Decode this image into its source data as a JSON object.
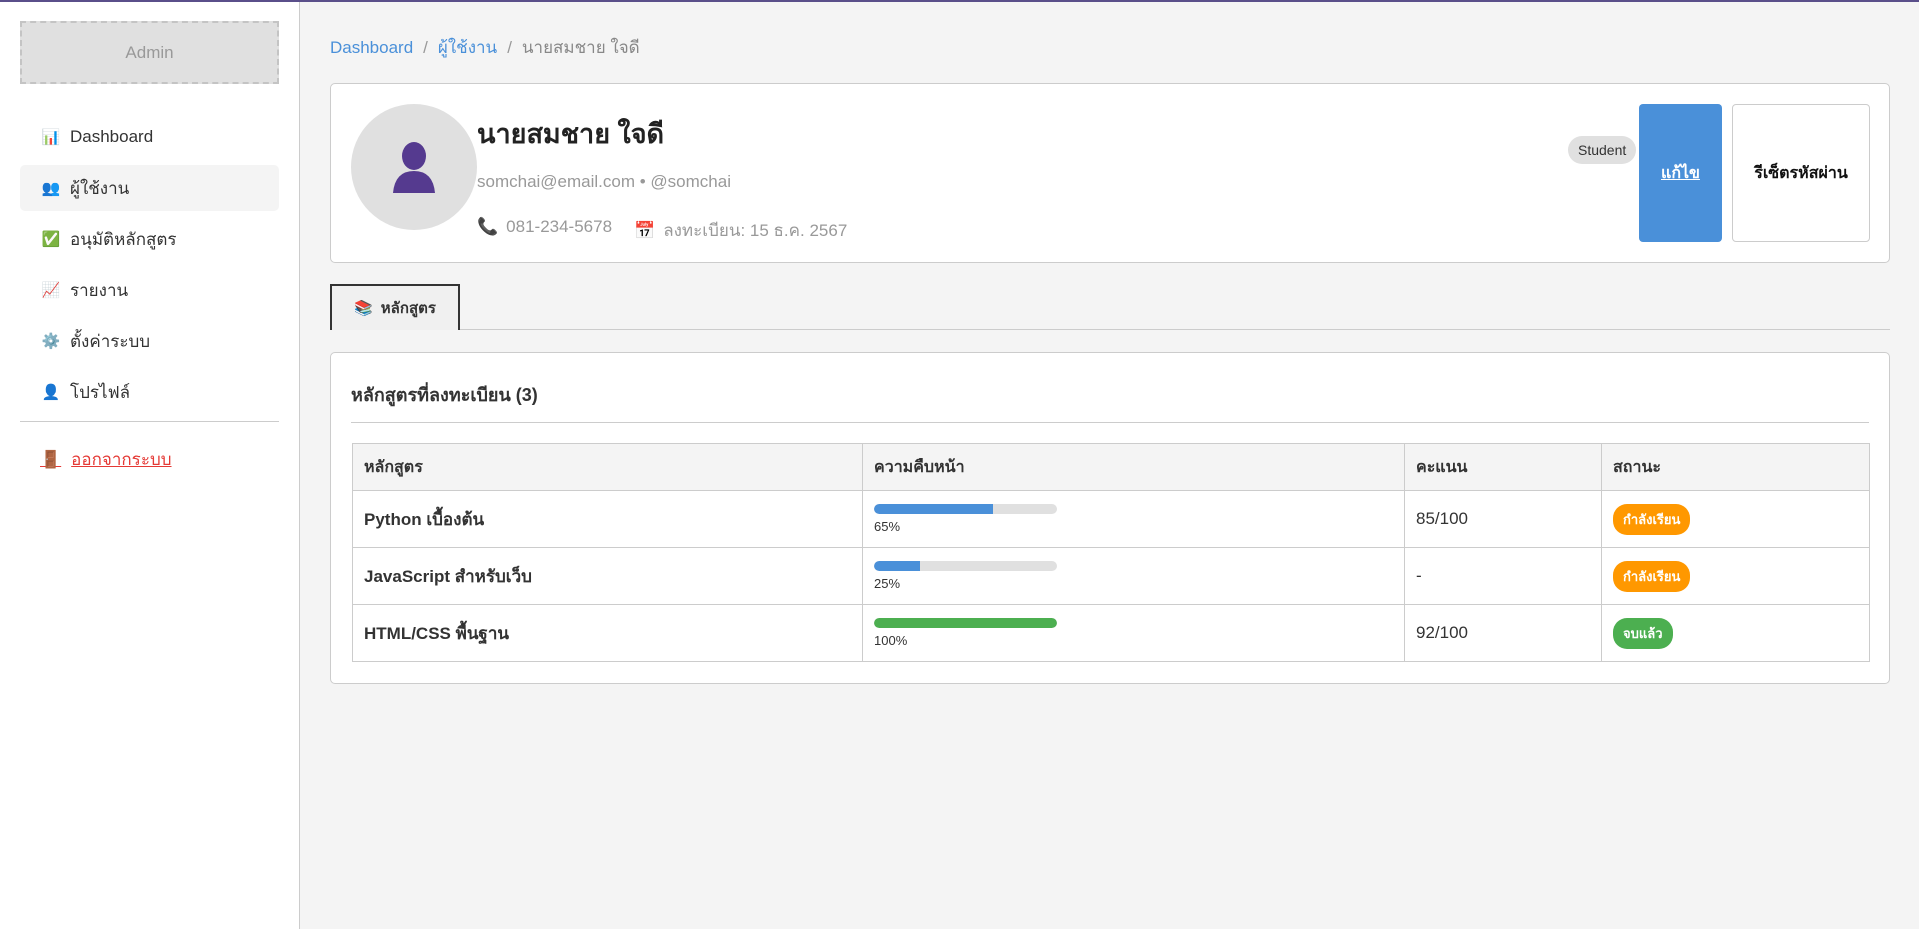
{
  "sidebar": {
    "admin_label": "Admin",
    "items": [
      {
        "label": "Dashboard",
        "icon": "bar-chart-icon",
        "glyph": "📊"
      },
      {
        "label": "ผู้ใช้งาน",
        "icon": "users-icon",
        "glyph": "👥"
      },
      {
        "label": "อนุมัติหลักสูตร",
        "icon": "check-icon",
        "glyph": "✅"
      },
      {
        "label": "รายงาน",
        "icon": "chart-up-icon",
        "glyph": "📈"
      },
      {
        "label": "ตั้งค่าระบบ",
        "icon": "gear-icon",
        "glyph": "⚙️"
      },
      {
        "label": "โปรไฟล์",
        "icon": "user-icon",
        "glyph": "👤"
      }
    ],
    "logout": {
      "label": "ออกจากระบบ",
      "icon": "door-icon",
      "glyph": "🚪"
    }
  },
  "breadcrumb": [
    "Dashboard",
    "ผู้ใช้งาน",
    "นายสมชาย ใจดี"
  ],
  "profile": {
    "name": "นายสมชาย ใจดี",
    "email_line": "somchai@email.com • @somchai",
    "phone": "081-234-5678",
    "registered": "ลงทะเบียน: 15 ธ.ค. 2567",
    "role": "Student",
    "edit_label": "แก้ไข",
    "reset_label": "รีเซ็ตรหัสผ่าน",
    "phone_glyph": "📞",
    "calendar_glyph": "📅"
  },
  "tabs": [
    {
      "label": "หลักสูตร",
      "glyph": "📚"
    }
  ],
  "courses": {
    "title": "หลักสูตรที่ลงทะเบียน (3)",
    "columns": [
      "หลักสูตร",
      "ความคืบหน้า",
      "คะแนน",
      "สถานะ"
    ],
    "rows": [
      {
        "name": "Python เบื้องต้น",
        "progress": 65,
        "progress_label": "65%",
        "score": "85/100",
        "status": "กำลังเรียน",
        "bar_color": "#4a90d9",
        "status_color": "#ff9800"
      },
      {
        "name": "JavaScript สำหรับเว็บ",
        "progress": 25,
        "progress_label": "25%",
        "score": "-",
        "status": "กำลังเรียน",
        "bar_color": "#4a90d9",
        "status_color": "#ff9800"
      },
      {
        "name": "HTML/CSS พื้นฐาน",
        "progress": 100,
        "progress_label": "100%",
        "score": "92/100",
        "status": "จบแล้ว",
        "bar_color": "#4caf50",
        "status_color": "#4caf50"
      }
    ]
  }
}
